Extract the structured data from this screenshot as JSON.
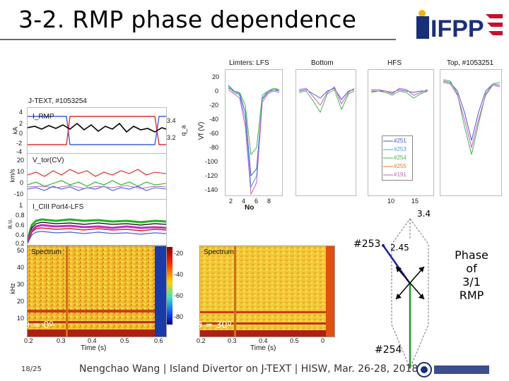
{
  "slide": {
    "title": "3-2. RMP phase dependence",
    "page_number": "18/25",
    "footer": "Nengchao Wang | Island Divertor on J-TEXT | HISW, Mar. 26-28, 2018"
  },
  "logo": {
    "text": "IFPP"
  },
  "left_figure": {
    "shot_label": "J-TEXT, #1053254",
    "panel_rmp": {
      "label": "I_RMP",
      "y_ticks": [
        "4",
        "2",
        "0",
        "-2",
        "-4"
      ],
      "y_unit": "kA",
      "right_ticks": [
        "3.4",
        "3.2"
      ],
      "right_unit": "q_a"
    },
    "panel_vtor": {
      "label": "V_tor(CV)",
      "y_ticks": [
        "20",
        "10",
        "0",
        "-10"
      ],
      "y_unit": "km/s"
    },
    "panel_ciii": {
      "label": "I_CIII Port4-LFS",
      "y_ticks": [
        "1",
        "0.8",
        "0.6",
        "0.4",
        "0.2"
      ],
      "y_unit": "a.u."
    },
    "spectrum": {
      "label": "Spectrum",
      "y_unit": "kHz",
      "y_ticks": [
        "50",
        "40",
        "30",
        "20",
        "10"
      ],
      "x_ticks": [
        "0.2",
        "0.3",
        "0.4",
        "0.5",
        "0.6"
      ],
      "x_label": "Time (s)",
      "phase_label": "θ = 0º"
    },
    "colorbar_ticks": [
      "-20",
      "-40",
      "-60",
      "-80"
    ]
  },
  "middle_figure": {
    "spectrum": {
      "label": "Spectrum",
      "x_ticks": [
        "0.2",
        "0.3",
        "0.4",
        "0.5",
        "0"
      ],
      "x_label": "Time (s)",
      "phase_label": "θ = 30º"
    }
  },
  "probe_figure": {
    "panel_titles": [
      "Limters: LFS",
      "Bottom",
      "HFS",
      "Top, #1053251"
    ],
    "y_label": "Vf (V)",
    "y_ticks": [
      "20",
      "0",
      "-20",
      "-40",
      "-60",
      "-80",
      "-100",
      "-120",
      "-140"
    ],
    "x_label": "No",
    "x_ticks_1": [
      "2",
      "4",
      "6",
      "8"
    ],
    "x_ticks_3": [
      "10",
      "15"
    ],
    "legend": [
      "#251",
      "#253",
      "#254",
      "#255",
      "#191"
    ],
    "series_colors": [
      "#4a55c8",
      "#4aa0d8",
      "#4cb04c",
      "#e07a2a",
      "#c060c0"
    ]
  },
  "schematic": {
    "top_value": "3.4",
    "shot_253": "#253",
    "value_245": "2.45",
    "shot_254": "#254"
  },
  "phase_note": [
    "Phase",
    "of",
    "3/1",
    "RMP"
  ],
  "colors": {
    "vtor_red": "#e02020",
    "vtor_green": "#20b020",
    "vtor_blue": "#4060e0",
    "arrow_blue": "#1f1f9c",
    "arrow_green": "#1a9a2a"
  }
}
